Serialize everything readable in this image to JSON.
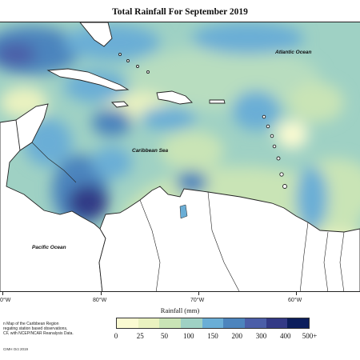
{
  "title": "Total Rainfall For September 2019",
  "ocean_labels": {
    "atlantic": "Atlantic Ocean",
    "caribbean": "Caribbean Sea",
    "pacific": "Pacific Ocean"
  },
  "longitude_ticks": [
    "0°W",
    "80°W",
    "70°W",
    "60°W"
  ],
  "axis_title": "Rainfall (mm)",
  "legend": {
    "labels": [
      "0",
      "25",
      "50",
      "100",
      "150",
      "200",
      "300",
      "400",
      "500+"
    ],
    "colors": [
      "#fbfbd2",
      "#eaf2c0",
      "#c9e4b6",
      "#9fd1c4",
      "#6aaed6",
      "#4c84bd",
      "#4b5ea8",
      "#333a86",
      "#0c1e5c"
    ]
  },
  "note_lines": [
    "n Map of the Caribbean Region",
    "regating station based observations,",
    "CF, with NCEP/NCAR Reanalysis Data."
  ],
  "credit": "CIMH Oct 2019"
}
